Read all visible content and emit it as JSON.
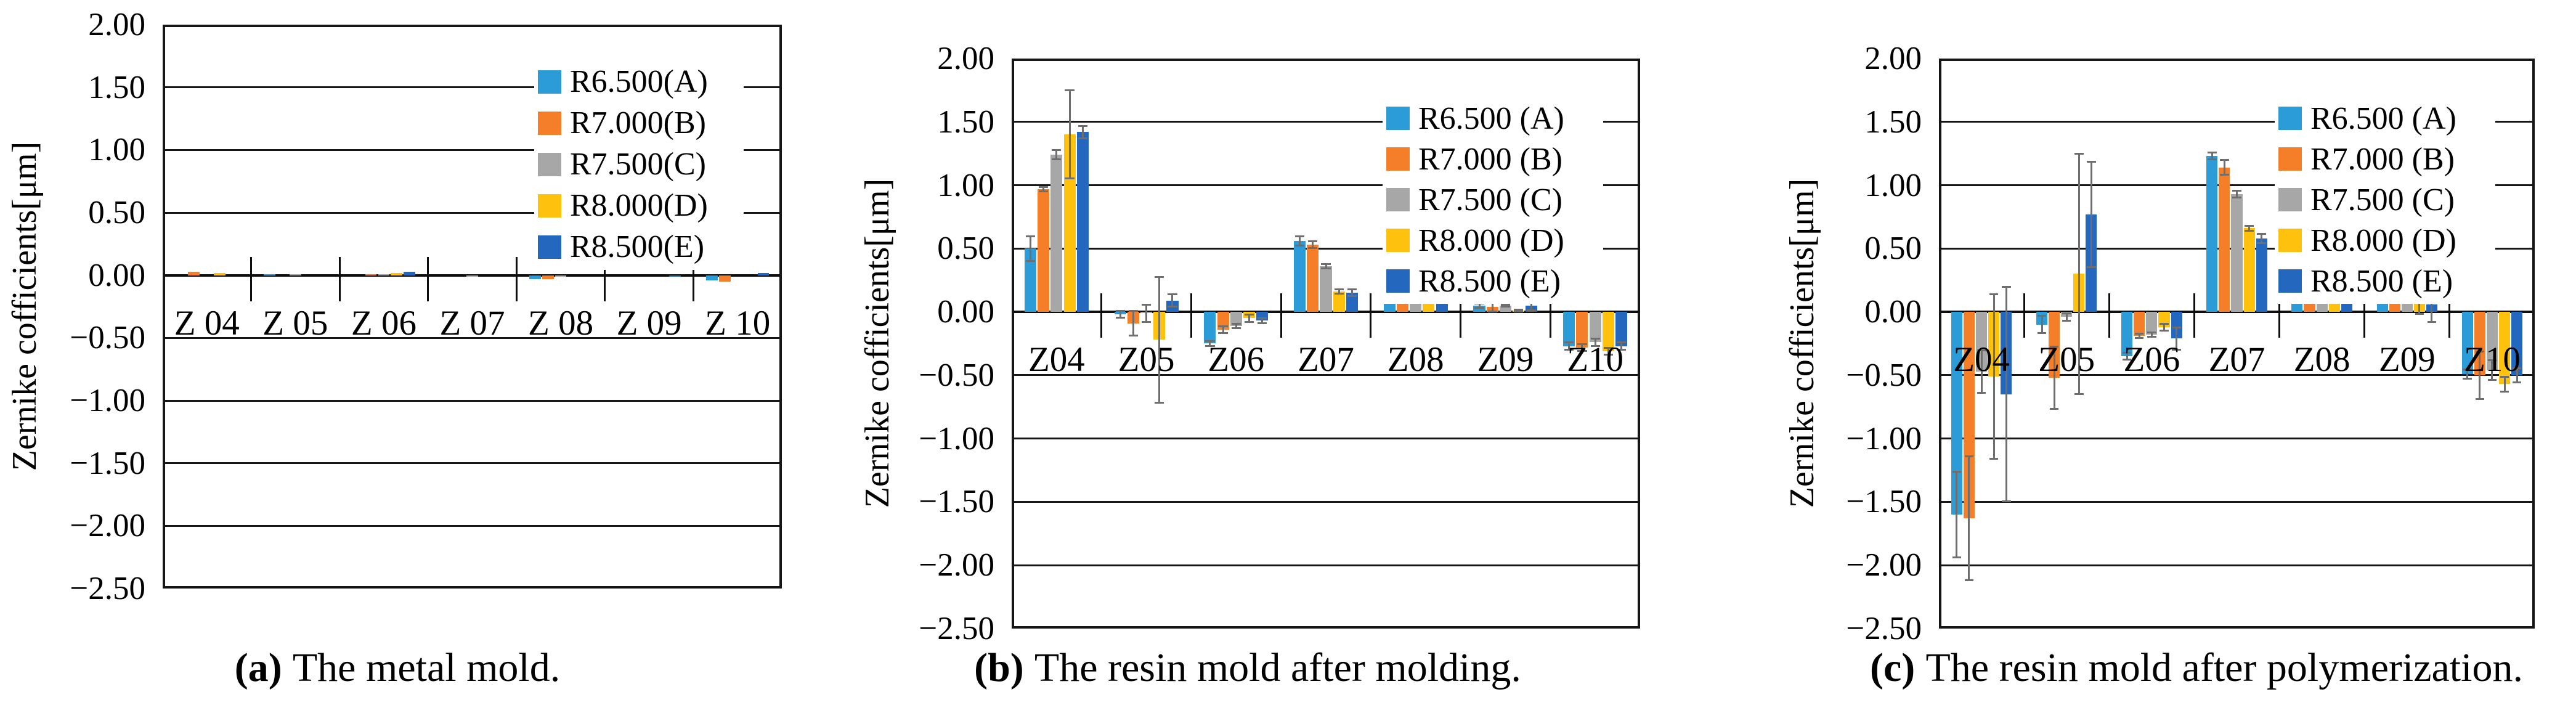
{
  "page": {
    "background": "#ffffff"
  },
  "error_bar_color": "#6e6e6e",
  "grid_color": "#161616",
  "chart_data": [
    {
      "type": "bar",
      "caption_label": "(a)",
      "caption_text": "The metal mold.",
      "ylabel": "Zernike cofficients[μm]",
      "ylim": [
        -2.5,
        2.0
      ],
      "ystep": 0.5,
      "y_tick_labels": [
        "2.00",
        "1.50",
        "1.00",
        "0.50",
        "0.00",
        "−0.50",
        "−1.00",
        "−1.50",
        "−2.00",
        "−2.50"
      ],
      "categories": [
        "Z 04",
        "Z 05",
        "Z 06",
        "Z 07",
        "Z 08",
        "Z 09",
        "Z 10"
      ],
      "legend_position": "top-right inside",
      "grid": true,
      "series": [
        {
          "name": "R6.500(A)",
          "color": "#2B9CD8",
          "values": [
            0.0,
            0.01,
            0.0,
            0.0,
            -0.03,
            0.0,
            -0.04
          ],
          "errors": [
            0,
            0,
            0,
            0,
            0,
            0,
            0
          ]
        },
        {
          "name": "R7.000(B)",
          "color": "#F57E28",
          "values": [
            0.03,
            0.0,
            0.01,
            0.0,
            -0.03,
            0.0,
            -0.05
          ],
          "errors": [
            0,
            0,
            0,
            0,
            0,
            0,
            0
          ]
        },
        {
          "name": "R7.500(C)",
          "color": "#A7A7A7",
          "values": [
            0.0,
            0.01,
            0.01,
            -0.01,
            -0.01,
            0.0,
            0.0
          ],
          "errors": [
            0,
            0,
            0,
            0,
            0,
            0,
            0
          ]
        },
        {
          "name": "R8.000(D)",
          "color": "#FEC20E",
          "values": [
            0.02,
            0.0,
            0.02,
            0.0,
            0.0,
            0.0,
            0.0
          ],
          "errors": [
            0,
            0,
            0,
            0,
            0,
            0,
            0
          ]
        },
        {
          "name": "R8.500(E)",
          "color": "#2467BE",
          "values": [
            0.0,
            0.0,
            0.03,
            0.0,
            0.0,
            -0.01,
            0.02
          ],
          "errors": [
            0,
            0,
            0,
            0,
            0,
            0,
            0
          ]
        }
      ]
    },
    {
      "type": "bar",
      "caption_label": "(b)",
      "caption_text": "The resin mold after molding.",
      "ylabel": "Zernike cofficients[μm]",
      "ylim": [
        -2.5,
        2.0
      ],
      "ystep": 0.5,
      "y_tick_labels": [
        "2.00",
        "1.50",
        "1.00",
        "0.50",
        "0.00",
        "−0.50",
        "−1.00",
        "−1.50",
        "−2.00",
        "−2.50"
      ],
      "categories": [
        "Z04",
        "Z05",
        "Z06",
        "Z07",
        "Z08",
        "Z09",
        "Z10"
      ],
      "legend_position": "top-right inside",
      "grid": true,
      "series": [
        {
          "name": "R6.500 (A)",
          "color": "#2B9CD8",
          "values": [
            0.5,
            -0.02,
            -0.25,
            0.56,
            0.23,
            0.05,
            -0.27
          ],
          "errors": [
            0.1,
            0.03,
            0.02,
            0.04,
            0.02,
            0.02,
            0.03
          ]
        },
        {
          "name": "R7.000 (B)",
          "color": "#F57E28",
          "values": [
            0.97,
            -0.09,
            -0.14,
            0.53,
            0.13,
            0.04,
            -0.28
          ],
          "errors": [
            0.02,
            0.1,
            0.03,
            0.03,
            0.02,
            0.04,
            0.03
          ]
        },
        {
          "name": "R7.500 (C)",
          "color": "#A7A7A7",
          "values": [
            1.24,
            -0.01,
            -0.11,
            0.36,
            0.14,
            0.05,
            -0.24
          ],
          "errors": [
            0.04,
            0.07,
            0.02,
            0.02,
            0.02,
            0.01,
            0.03
          ]
        },
        {
          "name": "R8.000 (D)",
          "color": "#FEC20E",
          "values": [
            1.4,
            -0.22,
            -0.05,
            0.16,
            0.19,
            0.01,
            -0.31
          ],
          "errors": [
            0.35,
            0.5,
            0.03,
            0.02,
            0.02,
            0.01,
            0.03
          ]
        },
        {
          "name": "R8.500 (E)",
          "color": "#2467BE",
          "values": [
            1.42,
            0.09,
            -0.07,
            0.15,
            0.16,
            0.05,
            -0.27
          ],
          "errors": [
            0.05,
            0.05,
            0.02,
            0.03,
            0.01,
            0.04,
            0.03
          ]
        }
      ]
    },
    {
      "type": "bar",
      "caption_label": "(c)",
      "caption_text": "The resin mold after polymerization.",
      "ylabel": "Zernike cofficients[μm]",
      "ylim": [
        -2.5,
        2.0
      ],
      "ystep": 0.5,
      "y_tick_labels": [
        "2.00",
        "1.50",
        "1.00",
        "0.50",
        "0.00",
        "−0.50",
        "−1.00",
        "−1.50",
        "−2.00",
        "−2.50"
      ],
      "categories": [
        "Z04",
        "Z05",
        "Z06",
        "Z07",
        "Z08",
        "Z09",
        "Z10"
      ],
      "legend_position": "top-right inside",
      "grid": true,
      "series": [
        {
          "name": "R6.500 (A)",
          "color": "#2B9CD8",
          "values": [
            -1.6,
            -0.1,
            -0.35,
            1.23,
            0.43,
            0.12,
            -0.49
          ],
          "errors": [
            0.34,
            0.07,
            0.03,
            0.03,
            0.02,
            0.03,
            0.04
          ]
        },
        {
          "name": "R7.000 (B)",
          "color": "#F57E28",
          "values": [
            -1.63,
            -0.52,
            -0.19,
            1.14,
            0.23,
            0.19,
            -0.5
          ],
          "errors": [
            0.49,
            0.25,
            0.02,
            0.06,
            0.02,
            0.08,
            0.19
          ]
        },
        {
          "name": "R7.500 (C)",
          "color": "#A7A7A7",
          "values": [
            -0.47,
            -0.04,
            -0.18,
            0.93,
            0.27,
            0.16,
            -0.46
          ],
          "errors": [
            0.17,
            0.03,
            0.02,
            0.03,
            0.02,
            0.06,
            0.08
          ]
        },
        {
          "name": "R8.000 (D)",
          "color": "#FEC20E",
          "values": [
            -0.51,
            0.3,
            -0.12,
            0.66,
            0.3,
            0.12,
            -0.57
          ],
          "errors": [
            0.65,
            0.95,
            0.03,
            0.02,
            0.01,
            0.14,
            0.06
          ]
        },
        {
          "name": "R8.500 (E)",
          "color": "#2467BE",
          "values": [
            -0.65,
            0.77,
            -0.21,
            0.58,
            0.29,
            0.06,
            -0.5
          ],
          "errors": [
            0.85,
            0.42,
            0.09,
            0.04,
            0.01,
            0.14,
            0.06
          ]
        }
      ]
    }
  ]
}
